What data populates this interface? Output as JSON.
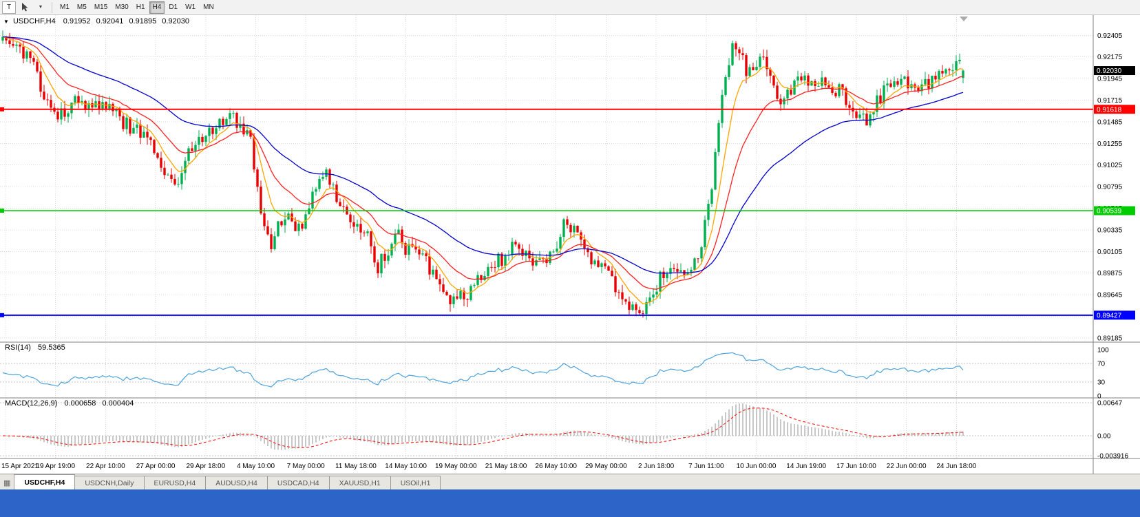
{
  "toolbar": {
    "chart_button_label": "T",
    "timeframes": [
      "M1",
      "M5",
      "M15",
      "M30",
      "H1",
      "H4",
      "D1",
      "W1",
      "MN"
    ],
    "active_timeframe": "H4"
  },
  "chart_header": {
    "expander": "▼",
    "symbol": "USDCHF,H4",
    "open": "0.91952",
    "high": "0.92041",
    "low": "0.91895",
    "close": "0.92030"
  },
  "price_axis": {
    "ticks": [
      "0.92405",
      "0.92175",
      "0.91945",
      "0.91715",
      "0.91485",
      "0.91255",
      "0.91025",
      "0.90795",
      "0.90565",
      "0.90335",
      "0.90105",
      "0.89875",
      "0.89645",
      "0.89415",
      "0.89185"
    ]
  },
  "time_axis": {
    "labels": [
      "15 Apr 2021",
      "19 Apr 19:00",
      "22 Apr 10:00",
      "27 Apr 00:00",
      "29 Apr 18:00",
      "4 May 10:00",
      "7 May 00:00",
      "11 May 18:00",
      "14 May 10:00",
      "19 May 00:00",
      "21 May 18:00",
      "26 May 10:00",
      "29 May 00:00",
      "2 Jun 18:00",
      "7 Jun 11:00",
      "10 Jun 00:00",
      "14 Jun 19:00",
      "17 Jun 10:00",
      "22 Jun 00:00",
      "24 Jun 18:00"
    ]
  },
  "levels": {
    "current_price": {
      "label": "0.92030",
      "value": 0.9203,
      "badge_bg": "#000000"
    }
  },
  "rsi": {
    "name": "RSI(14)",
    "value": "59.5365",
    "axis": [
      "100",
      "70",
      "30",
      "0"
    ],
    "levels": [
      70,
      30
    ],
    "color": "#4DA3DC"
  },
  "macd": {
    "name": "MACD(12,26,9)",
    "value1": "0.000658",
    "value2": "0.000404",
    "axis": [
      "0.00647",
      "0.00",
      "-0.003916"
    ]
  },
  "tabs": {
    "items": [
      "USDCHF,H4",
      "USDCNH,Daily",
      "EURUSD,H4",
      "AUDUSD,H4",
      "USDCAD,H4",
      "XAUUSD,H1",
      "USOil,H1"
    ],
    "active": "USDCHF,H4"
  },
  "colors": {
    "candle_up": "#00B050",
    "candle_down": "#E60000",
    "grid": "#DCDCDC",
    "level_dots": "#C4C4C4",
    "axis_text": "#000000",
    "macd_hist": "#B0B0B0",
    "macd_signal": "#FF0000",
    "separator": "#808080",
    "taskbar_blue": "#2D64C8",
    "badge_text": "#FFFFFF"
  },
  "chart_data": {
    "type": "candlestick",
    "symbol": "USDCHF",
    "timeframe": "H4",
    "title": "USDCHF,H4 0.91952 0.92041 0.91895 0.92030",
    "last_ohlc": {
      "open": 0.91952,
      "high": 0.92041,
      "low": 0.91895,
      "close": 0.9203
    },
    "y_range": [
      0.8914,
      0.9262
    ],
    "num_candles": 280,
    "noise": 0.0008,
    "wick": 0.0008,
    "seed": 987654321,
    "price_path_anchors": [
      [
        0,
        0.9235
      ],
      [
        0.014,
        0.9228
      ],
      [
        0.032,
        0.921
      ],
      [
        0.046,
        0.9168
      ],
      [
        0.061,
        0.9155
      ],
      [
        0.075,
        0.917
      ],
      [
        0.089,
        0.9162
      ],
      [
        0.107,
        0.9166
      ],
      [
        0.121,
        0.9151
      ],
      [
        0.139,
        0.9139
      ],
      [
        0.154,
        0.9132
      ],
      [
        0.168,
        0.9088
      ],
      [
        0.179,
        0.9078
      ],
      [
        0.189,
        0.9106
      ],
      [
        0.204,
        0.913
      ],
      [
        0.218,
        0.9139
      ],
      [
        0.236,
        0.916
      ],
      [
        0.246,
        0.9141
      ],
      [
        0.257,
        0.9134
      ],
      [
        0.268,
        0.9062
      ],
      [
        0.279,
        0.9012
      ],
      [
        0.289,
        0.9042
      ],
      [
        0.3,
        0.9046
      ],
      [
        0.311,
        0.903
      ],
      [
        0.325,
        0.908
      ],
      [
        0.336,
        0.9093
      ],
      [
        0.346,
        0.9072
      ],
      [
        0.357,
        0.9048
      ],
      [
        0.368,
        0.904
      ],
      [
        0.379,
        0.9032
      ],
      [
        0.389,
        0.899
      ],
      [
        0.4,
        0.9012
      ],
      [
        0.411,
        0.9028
      ],
      [
        0.421,
        0.9012
      ],
      [
        0.432,
        0.9018
      ],
      [
        0.443,
        0.8996
      ],
      [
        0.457,
        0.8968
      ],
      [
        0.471,
        0.8958
      ],
      [
        0.486,
        0.8966
      ],
      [
        0.5,
        0.899
      ],
      [
        0.511,
        0.9002
      ],
      [
        0.521,
        0.9
      ],
      [
        0.532,
        0.9022
      ],
      [
        0.543,
        0.9012
      ],
      [
        0.554,
        0.9
      ],
      [
        0.564,
        0.8996
      ],
      [
        0.575,
        0.9008
      ],
      [
        0.586,
        0.9048
      ],
      [
        0.593,
        0.9036
      ],
      [
        0.604,
        0.9022
      ],
      [
        0.614,
        0.9
      ],
      [
        0.625,
        0.899
      ],
      [
        0.636,
        0.8976
      ],
      [
        0.646,
        0.8963
      ],
      [
        0.657,
        0.895
      ],
      [
        0.664,
        0.8936
      ],
      [
        0.675,
        0.8962
      ],
      [
        0.686,
        0.8986
      ],
      [
        0.696,
        0.8992
      ],
      [
        0.707,
        0.8988
      ],
      [
        0.718,
        0.8992
      ],
      [
        0.725,
        0.9002
      ],
      [
        0.732,
        0.9042
      ],
      [
        0.739,
        0.9082
      ],
      [
        0.746,
        0.9152
      ],
      [
        0.754,
        0.9205
      ],
      [
        0.761,
        0.9232
      ],
      [
        0.768,
        0.9222
      ],
      [
        0.775,
        0.9198
      ],
      [
        0.782,
        0.921
      ],
      [
        0.789,
        0.9215
      ],
      [
        0.8,
        0.92
      ],
      [
        0.811,
        0.9165
      ],
      [
        0.821,
        0.9185
      ],
      [
        0.832,
        0.9195
      ],
      [
        0.846,
        0.9192
      ],
      [
        0.861,
        0.9188
      ],
      [
        0.875,
        0.9178
      ],
      [
        0.889,
        0.9158
      ],
      [
        0.9,
        0.915
      ],
      [
        0.911,
        0.917
      ],
      [
        0.921,
        0.9186
      ],
      [
        0.936,
        0.9192
      ],
      [
        0.95,
        0.919
      ],
      [
        0.964,
        0.9186
      ],
      [
        0.979,
        0.92
      ],
      [
        0.993,
        0.9214
      ],
      [
        1,
        0.9203
      ]
    ],
    "moving_averages": [
      {
        "period": 8,
        "color": "#FFA500"
      },
      {
        "period": 20,
        "color": "#FF2020"
      },
      {
        "period": 50,
        "color": "#0000CD"
      }
    ],
    "horizontal_lines": [
      {
        "label": "0.91618",
        "value": 0.91618,
        "color": "#FF0000",
        "width": 2
      },
      {
        "label": "0.90539",
        "value": 0.90539,
        "color": "#00CC00",
        "width": 1.5
      },
      {
        "label": "0.89427",
        "value": 0.89427,
        "color": "#0000FF",
        "width": 2
      }
    ],
    "indicators": [
      {
        "name": "RSI",
        "period": 14,
        "value": 59.5365
      },
      {
        "name": "MACD",
        "fast": 12,
        "slow": 26,
        "signal": 9,
        "value": 0.000658,
        "signal_value": 0.000404
      }
    ]
  }
}
